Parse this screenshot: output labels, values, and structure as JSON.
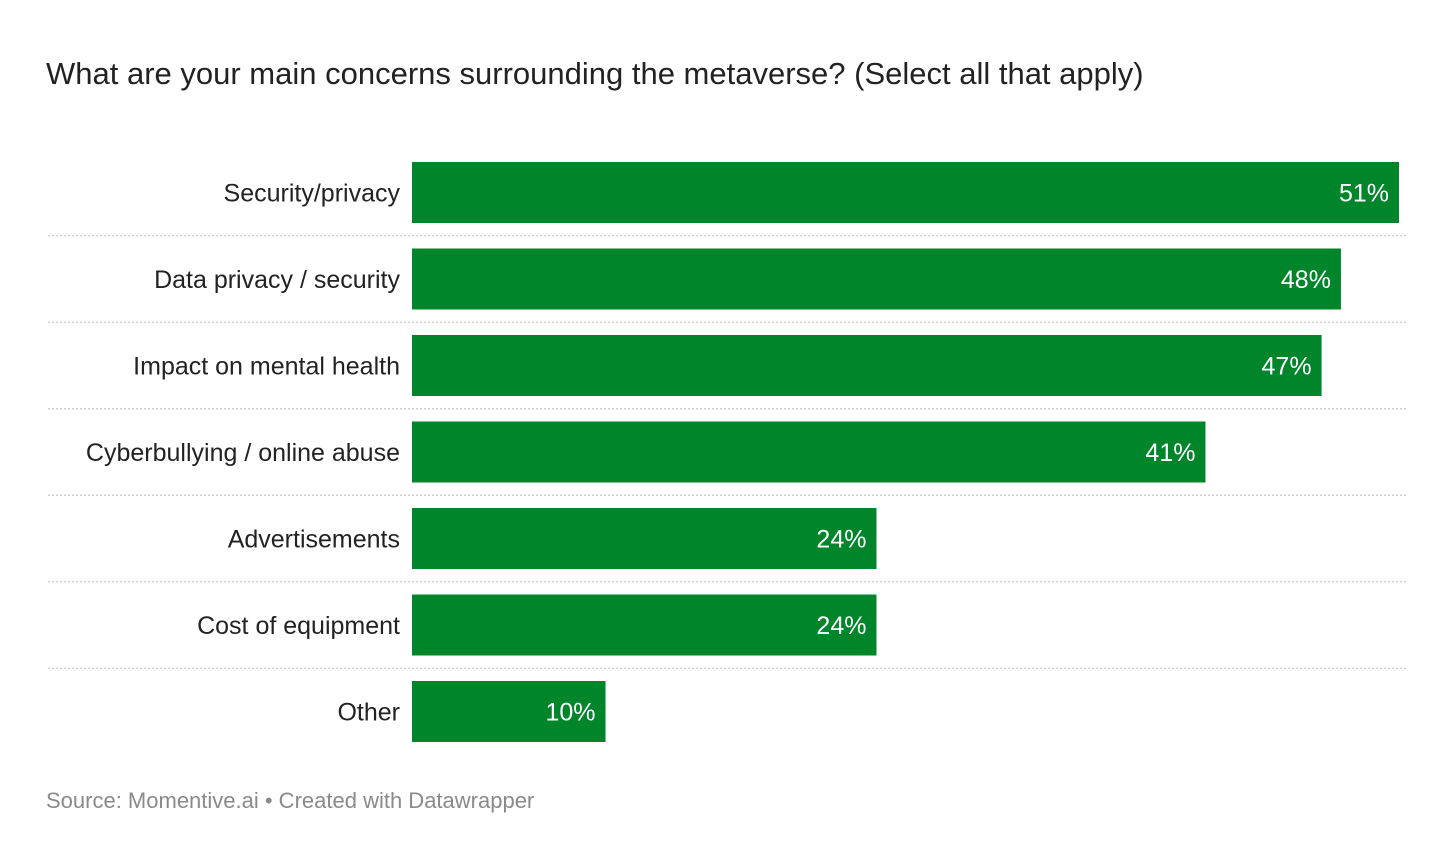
{
  "chart_data": {
    "type": "bar",
    "orientation": "horizontal",
    "title": "What are your main concerns surrounding the metaverse? (Select all that apply)",
    "categories": [
      "Security/privacy",
      "Data privacy / security",
      "Impact on mental health",
      "Cyberbullying / online abuse",
      "Advertisements",
      "Cost of equipment",
      "Other"
    ],
    "values": [
      51,
      48,
      47,
      41,
      24,
      24,
      10
    ],
    "value_labels": [
      "51%",
      "48%",
      "47%",
      "41%",
      "24%",
      "24%",
      "10%"
    ],
    "unit": "%",
    "xlim": [
      0,
      51
    ],
    "bar_color": "#00852a",
    "label_color": "#ffffff",
    "grid": false,
    "separators": "dotted"
  },
  "footer": {
    "source": "Source: Momentive.ai • Created with Datawrapper"
  }
}
